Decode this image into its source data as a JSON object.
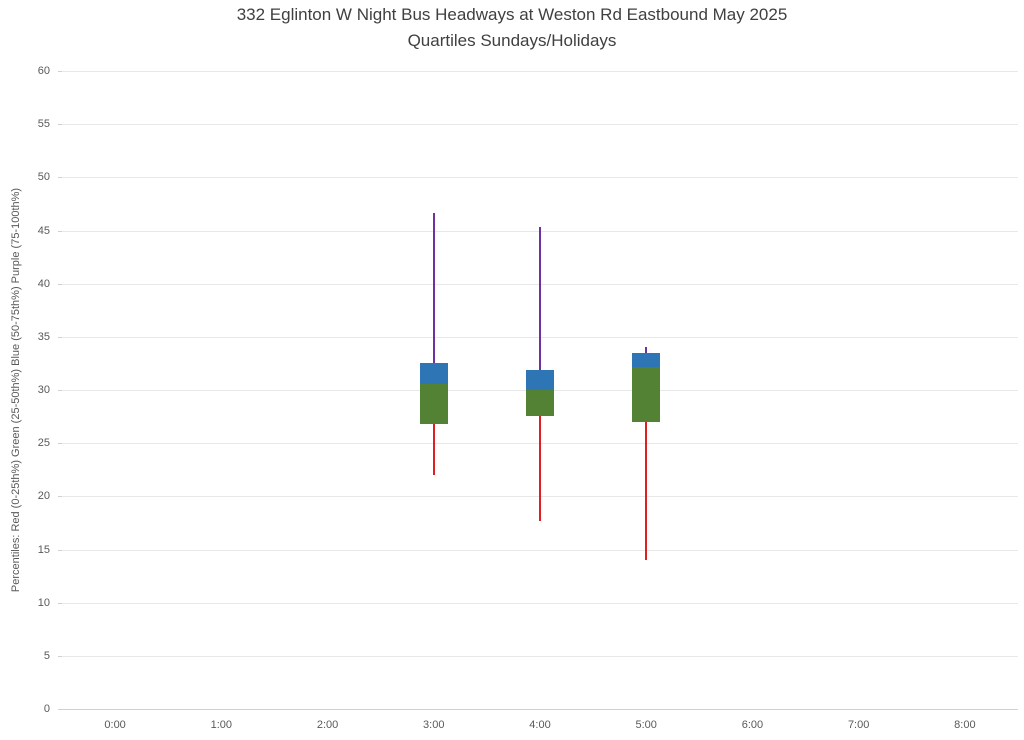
{
  "title": {
    "line1": "332 Eglinton W Night Bus Headways at Weston Rd Eastbound May 2025",
    "line2": "Quartiles Sundays/Holidays"
  },
  "chart_data": {
    "type": "boxplot",
    "title": "332 Eglinton W Night Bus Headways at Weston Rd Eastbound May 2025 — Quartiles Sundays/Holidays",
    "xlabel": "",
    "ylabel": "Percentiles:  Red (0-25th%)  Green (25-50th%)  Blue (50-75th%)  Purple (75-100th%)",
    "categories": [
      "0:00",
      "1:00",
      "2:00",
      "3:00",
      "4:00",
      "5:00",
      "6:00",
      "7:00",
      "8:00"
    ],
    "y_ticks": [
      0,
      5,
      10,
      15,
      20,
      25,
      30,
      35,
      40,
      45,
      50,
      55,
      60
    ],
    "ylim": [
      0,
      60
    ],
    "grid": true,
    "legend_position": "none",
    "colors": {
      "p0_25_red": "#e02020",
      "p25_50_green": "#548235",
      "p50_75_blue": "#2e75b6",
      "p75_100_purple": "#7030a0"
    },
    "boxes": [
      {
        "category": "3:00",
        "p0": 22.0,
        "p25": 26.8,
        "p50": 30.6,
        "p75": 32.5,
        "p100": 46.6
      },
      {
        "category": "4:00",
        "p0": 17.7,
        "p25": 27.6,
        "p50": 30.0,
        "p75": 31.9,
        "p100": 45.3
      },
      {
        "category": "5:00",
        "p0": 14.0,
        "p25": 27.0,
        "p50": 32.2,
        "p75": 33.5,
        "p100": 34.0
      }
    ]
  }
}
